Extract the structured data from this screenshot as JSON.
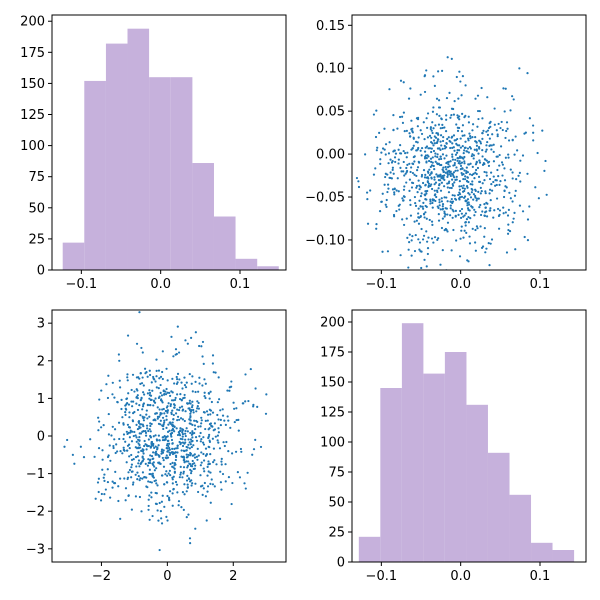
{
  "figure": {
    "background": "#ffffff"
  },
  "colors": {
    "hist": "#c6b1dc",
    "scatter": "#1f77b4"
  },
  "chart_data": [
    {
      "type": "bar",
      "panel": "top-left",
      "xlim": [
        -0.137,
        0.158
      ],
      "ylim": [
        0,
        205
      ],
      "xticks": [
        -0.1,
        0.0,
        0.1
      ],
      "xtick_labels": [
        "−0.1",
        "0.0",
        "0.1"
      ],
      "yticks": [
        0,
        25,
        50,
        75,
        100,
        125,
        150,
        175,
        200
      ],
      "ytick_labels": [
        "0",
        "25",
        "50",
        "75",
        "100",
        "125",
        "150",
        "175",
        "200"
      ],
      "bin_edges": [
        -0.1235,
        -0.0963,
        -0.069,
        -0.0418,
        -0.0146,
        0.0127,
        0.04,
        0.0672,
        0.0944,
        0.1217,
        0.1489
      ],
      "values": [
        22,
        152,
        182,
        194,
        155,
        155,
        86,
        43,
        9,
        3
      ],
      "grid": false,
      "legend": "none"
    },
    {
      "type": "scatter",
      "panel": "top-right",
      "xlim": [
        -0.137,
        0.158
      ],
      "ylim": [
        -0.135,
        0.162
      ],
      "xticks": [
        -0.1,
        0.0,
        0.1
      ],
      "xtick_labels": [
        "−0.1",
        "0.0",
        "0.1"
      ],
      "yticks": [
        -0.1,
        -0.05,
        0.0,
        0.05,
        0.1,
        0.15
      ],
      "ytick_labels": [
        "−0.10",
        "−0.05",
        "0.00",
        "0.05",
        "0.10",
        "0.15"
      ],
      "points_generated": true,
      "n_points": 1000,
      "x_center": -0.016,
      "x_spread": 0.045,
      "y_center": -0.02,
      "y_spread": 0.045,
      "grid": false,
      "legend": "none"
    },
    {
      "type": "scatter",
      "panel": "bottom-left",
      "xlim": [
        -3.5,
        3.6
      ],
      "ylim": [
        -3.35,
        3.35
      ],
      "xticks": [
        -2,
        0,
        2
      ],
      "xtick_labels": [
        "−2",
        "0",
        "2"
      ],
      "yticks": [
        -3,
        -2,
        -1,
        0,
        1,
        2,
        3
      ],
      "ytick_labels": [
        "−3",
        "−2",
        "−1",
        "0",
        "1",
        "2",
        "3"
      ],
      "points_generated": true,
      "n_points": 1000,
      "x_center": 0,
      "x_spread": 1,
      "y_center": 0,
      "y_spread": 1,
      "grid": false,
      "legend": "none"
    },
    {
      "type": "bar",
      "panel": "bottom-right",
      "xlim": [
        -0.137,
        0.158
      ],
      "ylim": [
        0,
        210
      ],
      "xticks": [
        -0.1,
        0.0,
        0.1
      ],
      "xtick_labels": [
        "−0.1",
        "0.0",
        "0.1"
      ],
      "yticks": [
        0,
        25,
        50,
        75,
        100,
        125,
        150,
        175,
        200
      ],
      "ytick_labels": [
        "0",
        "25",
        "50",
        "75",
        "100",
        "125",
        "150",
        "175",
        "200"
      ],
      "bin_edges": [
        -0.1284,
        -0.1013,
        -0.0741,
        -0.047,
        -0.0199,
        0.0073,
        0.0344,
        0.0616,
        0.0887,
        0.1158,
        0.143
      ],
      "values": [
        21,
        145,
        199,
        157,
        175,
        131,
        91,
        56,
        16,
        10
      ],
      "grid": false,
      "legend": "none"
    }
  ]
}
